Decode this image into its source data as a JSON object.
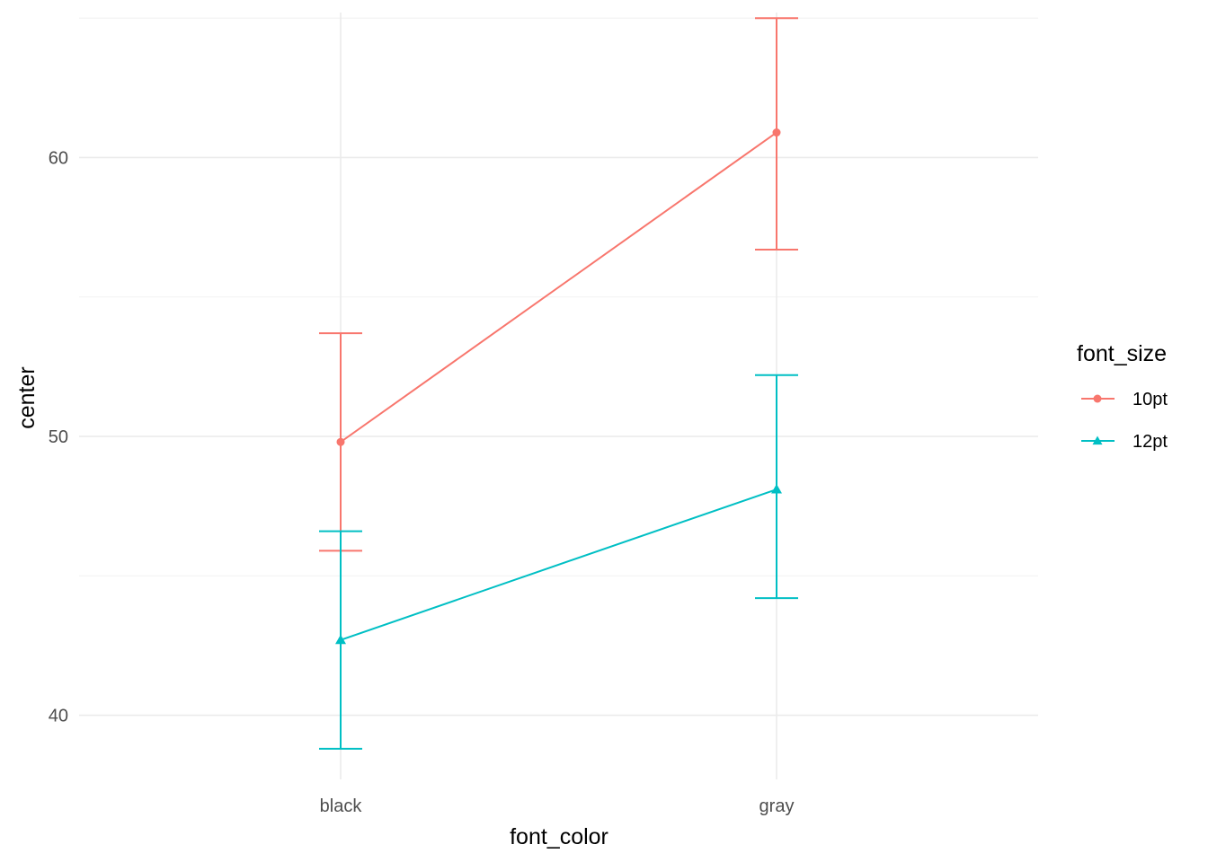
{
  "chart_data": {
    "type": "line",
    "xlabel": "font_color",
    "ylabel": "center",
    "categories": [
      "black",
      "gray"
    ],
    "ylim": [
      37.7,
      65.2
    ],
    "y_ticks": [
      40,
      50,
      60
    ],
    "y_minor_ticks": [
      45,
      55,
      65
    ],
    "grid": true,
    "legend": {
      "title": "font_size",
      "position": "right"
    },
    "series": [
      {
        "name": "10pt",
        "color": "#F8766D",
        "marker": "circle",
        "values": [
          49.8,
          60.9
        ],
        "lower": [
          45.9,
          56.7
        ],
        "upper": [
          53.7,
          65.0
        ]
      },
      {
        "name": "12pt",
        "color": "#00BFC4",
        "marker": "triangle",
        "values": [
          42.7,
          48.1
        ],
        "lower": [
          38.8,
          44.2
        ],
        "upper": [
          46.6,
          52.2
        ]
      }
    ]
  }
}
